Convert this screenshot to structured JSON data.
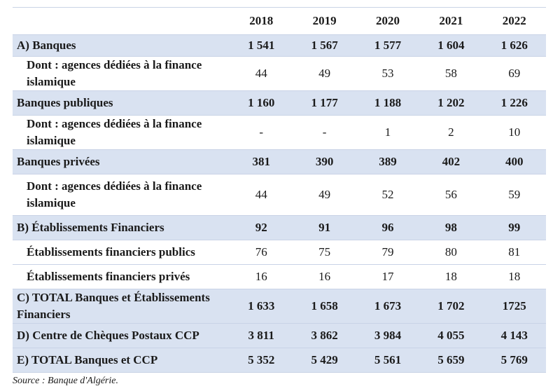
{
  "table": {
    "header": {
      "label": "",
      "years": [
        "2018",
        "2019",
        "2020",
        "2021",
        "2022"
      ]
    },
    "rows": [
      {
        "label": "A) Banques",
        "values": [
          "1 541",
          "1 567",
          "1 577",
          "1 604",
          "1 626"
        ]
      },
      {
        "label": "Dont : agences dédiées à la finance islamique",
        "values": [
          "44",
          "49",
          "53",
          "58",
          "69"
        ]
      },
      {
        "label": "Banques publiques",
        "values": [
          "1 160",
          "1 177",
          "1 188",
          "1 202",
          "1 226"
        ]
      },
      {
        "label": "Dont : agences dédiées à la finance islamique",
        "values": [
          "-",
          "-",
          "1",
          "2",
          "10"
        ]
      },
      {
        "label": "Banques privées",
        "values": [
          "381",
          "390",
          "389",
          "402",
          "400"
        ]
      },
      {
        "label": "Dont : agences dédiées à la finance islamique",
        "values": [
          "44",
          "49",
          "52",
          "56",
          "59"
        ]
      },
      {
        "label": "B) Établissements Financiers",
        "values": [
          "92",
          "91",
          "96",
          "98",
          "99"
        ]
      },
      {
        "label": "Établissements financiers publics",
        "values": [
          "76",
          "75",
          "79",
          "80",
          "81"
        ]
      },
      {
        "label": "Établissements financiers privés",
        "values": [
          "16",
          "16",
          "17",
          "18",
          "18"
        ]
      },
      {
        "label": "C) TOTAL Banques et Établissements Financiers",
        "values": [
          "1 633",
          "1 658",
          "1 673",
          "1 702",
          "1725"
        ]
      },
      {
        "label": "D) Centre de Chèques Postaux CCP",
        "values": [
          "3 811",
          "3 862",
          "3 984",
          "4 055",
          "4 143"
        ]
      },
      {
        "label": "E) TOTAL Banques et CCP",
        "values": [
          "5 352",
          "5 429",
          "5 561",
          "5 659",
          "5 769"
        ]
      }
    ]
  },
  "source": "Source : Banque d'Algérie."
}
